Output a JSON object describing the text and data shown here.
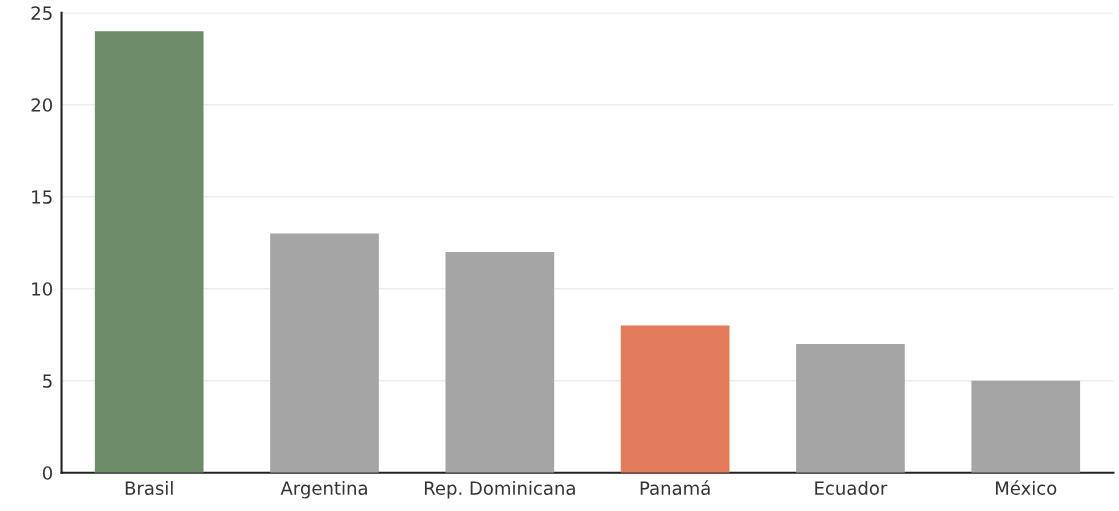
{
  "chart_data": {
    "type": "bar",
    "categories": [
      "Brasil",
      "Argentina",
      "Rep. Dominicana",
      "Panamá",
      "Ecuador",
      "México"
    ],
    "values": [
      24,
      13,
      12,
      8,
      7,
      5
    ],
    "colors": [
      "#6e8c68",
      "#a5a5a5",
      "#a5a5a5",
      "#e27a5c",
      "#a5a5a5",
      "#a5a5a5"
    ],
    "ylim": [
      0,
      25
    ],
    "yticks": [
      0,
      5,
      10,
      15,
      20,
      25
    ],
    "grid": "y"
  }
}
